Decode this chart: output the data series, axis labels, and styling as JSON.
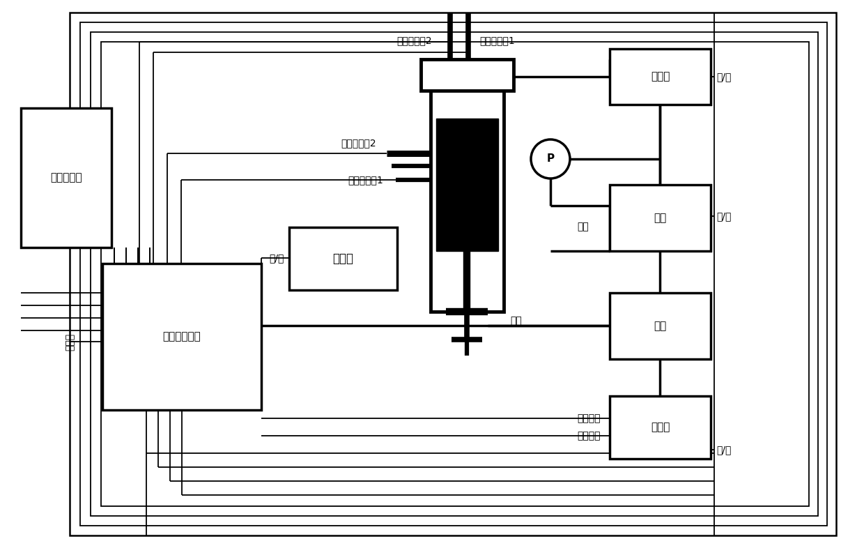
{
  "bg": "#ffffff",
  "lc": "#000000",
  "figsize": [
    12.4,
    7.86
  ],
  "dpi": 100,
  "lw_thick": 2.5,
  "lw_med": 1.8,
  "lw_thin": 1.3,
  "font_size": 11,
  "font_size_sm": 10,
  "labels": {
    "display": "显示触摸屏",
    "control": "模拟控制单元",
    "heater": "加热片",
    "solenoid": "电磁阀",
    "pump": "油泵",
    "motor": "电机",
    "inverter": "变频器",
    "yitaiwang": "以太网",
    "temp2": "温度传感器2",
    "temp1": "温度传感器1",
    "press2": "压力传感器2",
    "press1": "压力传感器1",
    "qiting": "启/停",
    "youya": "油压",
    "quzhou": "曲轴",
    "zhuansu_fankui": "转速反馈",
    "zhuansu_shuru": "转速输入",
    "P": "P"
  }
}
